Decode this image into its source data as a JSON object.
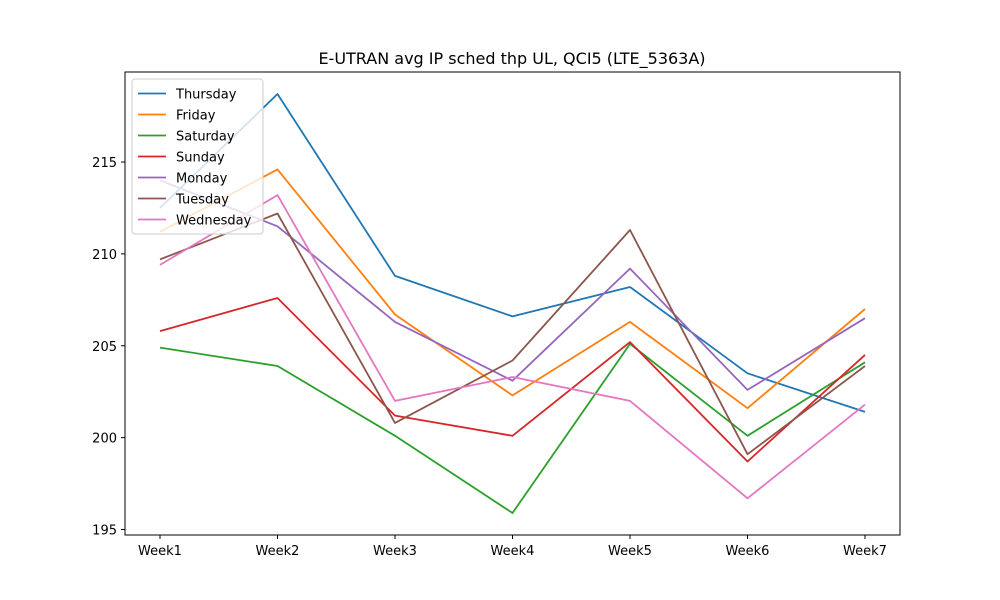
{
  "chart_data": {
    "type": "line",
    "title": "E-UTRAN avg IP sched thp UL, QCI5 (LTE_5363A)",
    "xlabel": "",
    "ylabel": "",
    "categories": [
      "Week1",
      "Week2",
      "Week3",
      "Week4",
      "Week5",
      "Week6",
      "Week7"
    ],
    "ylim": [
      194.7,
      219.9
    ],
    "yticks": [
      195,
      200,
      205,
      210,
      215
    ],
    "grid": false,
    "legend_position": "top-left",
    "series": [
      {
        "name": "Thursday",
        "color": "#1f77b4",
        "values": [
          212.5,
          218.7,
          208.8,
          206.6,
          208.2,
          203.5,
          201.4
        ]
      },
      {
        "name": "Friday",
        "color": "#ff7f0e",
        "values": [
          211.2,
          214.6,
          206.7,
          202.3,
          206.3,
          201.6,
          207.0
        ]
      },
      {
        "name": "Saturday",
        "color": "#2ca02c",
        "values": [
          204.9,
          203.9,
          200.1,
          195.9,
          205.1,
          200.1,
          204.1
        ]
      },
      {
        "name": "Sunday",
        "color": "#d62728",
        "values": [
          205.8,
          207.6,
          201.2,
          200.1,
          205.2,
          198.7,
          204.5
        ]
      },
      {
        "name": "Monday",
        "color": "#9467bd",
        "values": [
          214.0,
          211.5,
          206.3,
          203.1,
          209.2,
          202.6,
          206.5
        ]
      },
      {
        "name": "Tuesday",
        "color": "#8c564b",
        "values": [
          209.7,
          212.2,
          200.8,
          204.2,
          211.3,
          199.1,
          203.9
        ]
      },
      {
        "name": "Wednesday",
        "color": "#e377c2",
        "values": [
          209.4,
          213.2,
          202.0,
          203.3,
          202.0,
          196.7,
          201.8
        ]
      }
    ]
  }
}
